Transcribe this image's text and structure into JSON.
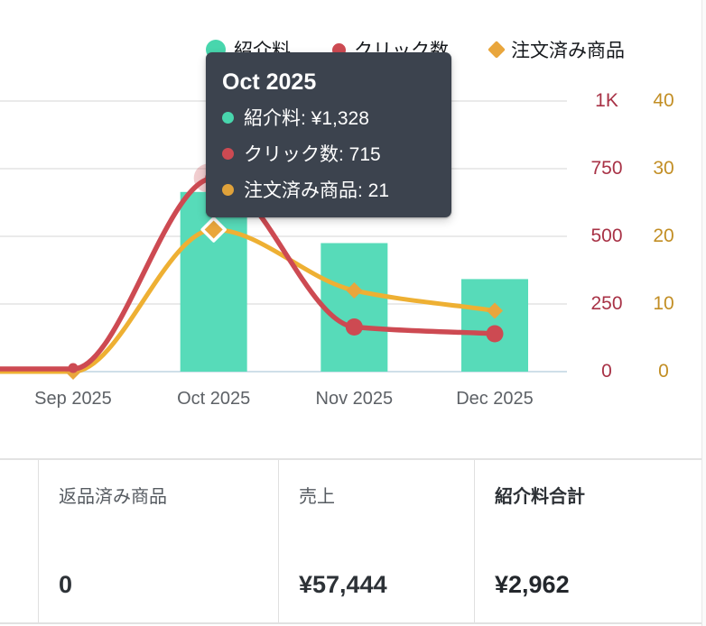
{
  "legend": {
    "items": [
      {
        "label": "紹介料",
        "color": "#48d6ad",
        "marker": "circle-large"
      },
      {
        "label": "クリック数",
        "color": "#cd4a52",
        "marker": "circle"
      },
      {
        "label": "注文済み商品",
        "color": "#e9a63c",
        "marker": "diamond"
      }
    ]
  },
  "tooltip": {
    "title": "Oct 2025",
    "rows": [
      {
        "label": "紹介料",
        "value": "¥1,328",
        "color": "#48d6ad"
      },
      {
        "label": "クリック数",
        "value": "715",
        "color": "#cd4a52"
      },
      {
        "label": "注文済み商品",
        "value": "21",
        "color": "#e0a23a"
      }
    ]
  },
  "chart_data": {
    "type": "combo-bar-line",
    "categories": [
      "Sep 2025",
      "Oct 2025",
      "Nov 2025",
      "Dec 2025"
    ],
    "series": [
      {
        "name": "紹介料",
        "type": "bar",
        "color": "#57dbb9",
        "axis": "left-hidden",
        "values": [
          0,
          1328,
          950,
          684
        ]
      },
      {
        "name": "クリック数",
        "type": "line",
        "color": "#cd4a52",
        "axis": "right-inner",
        "values": [
          10,
          715,
          165,
          140
        ]
      },
      {
        "name": "注文済み商品",
        "type": "line",
        "color": "#eeb033",
        "axis": "right-outer",
        "values": [
          0,
          21,
          12,
          9
        ]
      }
    ],
    "axes": {
      "left_hidden": {
        "min": 0,
        "max": 2000
      },
      "right_clicks": {
        "color": "#a83246",
        "min": 0,
        "max": 1000,
        "ticks_top_down": [
          "1K",
          "750",
          "500",
          "250",
          "0"
        ]
      },
      "right_orders": {
        "color": "#c28e24",
        "min": 0,
        "max": 40,
        "ticks_top_down": [
          "40",
          "30",
          "20",
          "10",
          "0"
        ]
      }
    },
    "highlighted_point": {
      "category": "Oct 2025",
      "紹介料": "¥1,328",
      "クリック数": 715,
      "注文済み商品": 21
    },
    "grid": true,
    "legend_position": "top"
  },
  "stats": {
    "cards": [
      {
        "label": "返品済み商品",
        "value": "0",
        "emphasis": false
      },
      {
        "label": "売上",
        "value": "¥57,444",
        "emphasis": false
      },
      {
        "label": "紹介料合計",
        "value": "¥2,962",
        "emphasis": true
      }
    ]
  }
}
